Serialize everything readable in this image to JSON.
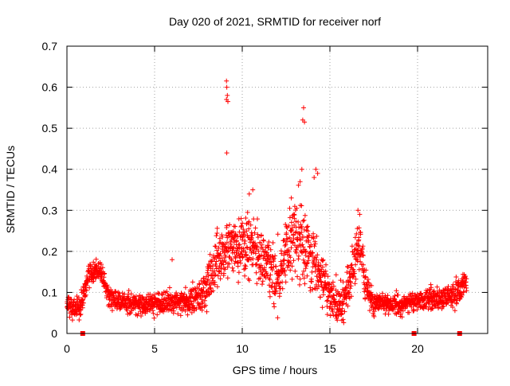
{
  "chart_data": {
    "type": "scatter",
    "title": "Day 020 of 2021, SRMTID for receiver norf",
    "xlabel": "GPS time / hours",
    "ylabel": "SRMTID / TECUs",
    "xlim": [
      0,
      24
    ],
    "ylim": [
      0,
      0.7
    ],
    "xticks": [
      0,
      5,
      10,
      15,
      20
    ],
    "xtick_labels": [
      "0",
      "5",
      "10",
      "15",
      "20"
    ],
    "yticks": [
      0,
      0.1,
      0.2,
      0.3,
      0.4,
      0.5,
      0.6,
      0.7
    ],
    "ytick_labels": [
      "0",
      "0.1",
      "0.2",
      "0.3",
      "0.4",
      "0.5",
      "0.6",
      "0.7"
    ],
    "grid": true,
    "marker": "+",
    "color": "#ff0000",
    "series": [
      {
        "name": "SRMTID",
        "trend_x": [
          0,
          0.4,
          0.8,
          1.0,
          1.3,
          1.6,
          1.9,
          2.1,
          2.4,
          3,
          4,
          5,
          6,
          7,
          7.5,
          8,
          8.5,
          9,
          9.5,
          10,
          10.5,
          11,
          11.5,
          12,
          12.5,
          13,
          13.5,
          14,
          14.5,
          15,
          15.5,
          16,
          16.5,
          16.8,
          17,
          17.5,
          18,
          19,
          20,
          21,
          22,
          22.8
        ],
        "trend_y": [
          0.07,
          0.06,
          0.07,
          0.1,
          0.15,
          0.16,
          0.15,
          0.12,
          0.09,
          0.08,
          0.07,
          0.075,
          0.075,
          0.08,
          0.09,
          0.12,
          0.17,
          0.2,
          0.21,
          0.2,
          0.22,
          0.2,
          0.16,
          0.13,
          0.2,
          0.25,
          0.22,
          0.18,
          0.13,
          0.09,
          0.07,
          0.1,
          0.2,
          0.21,
          0.12,
          0.08,
          0.075,
          0.07,
          0.08,
          0.085,
          0.09,
          0.12
        ],
        "spread_x": [
          0,
          1,
          2,
          3,
          7,
          8,
          9,
          10,
          11,
          12,
          13,
          14,
          15,
          16,
          16.5,
          17,
          18,
          20,
          22,
          22.8
        ],
        "spread_y": [
          0.02,
          0.025,
          0.025,
          0.02,
          0.025,
          0.05,
          0.06,
          0.06,
          0.06,
          0.06,
          0.07,
          0.07,
          0.04,
          0.05,
          0.05,
          0.03,
          0.02,
          0.02,
          0.025,
          0.03
        ],
        "outliers": [
          [
            9.1,
            0.615
          ],
          [
            9.12,
            0.6
          ],
          [
            9.15,
            0.58
          ],
          [
            9.1,
            0.57
          ],
          [
            9.18,
            0.565
          ],
          [
            9.12,
            0.44
          ],
          [
            13.5,
            0.55
          ],
          [
            13.45,
            0.52
          ],
          [
            13.55,
            0.515
          ],
          [
            13.4,
            0.4
          ],
          [
            14.2,
            0.4
          ],
          [
            14.3,
            0.39
          ],
          [
            14.1,
            0.38
          ],
          [
            13.3,
            0.37
          ],
          [
            12.8,
            0.33
          ],
          [
            10.6,
            0.35
          ],
          [
            10.4,
            0.34
          ],
          [
            6.0,
            0.18
          ],
          [
            16.6,
            0.3
          ],
          [
            16.7,
            0.29
          ]
        ],
        "x_start": 0,
        "x_end": 22.8,
        "n_points": 2200
      }
    ],
    "axis_markers_x": [
      0.9,
      19.8,
      22.4
    ],
    "axis_markers_y": 0
  }
}
